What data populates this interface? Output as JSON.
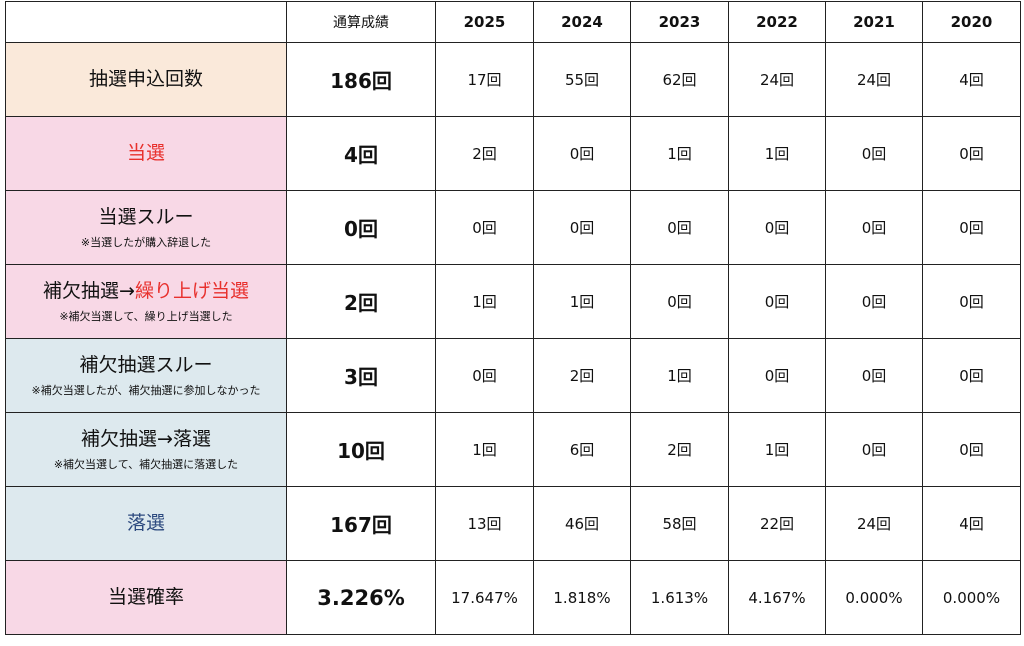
{
  "header": {
    "total_label": "通算成績",
    "years": [
      "2025",
      "2024",
      "2023",
      "2022",
      "2021",
      "2020"
    ]
  },
  "rows": [
    {
      "label": "抽選申込回数",
      "total": "186回",
      "values": [
        "17回",
        "55回",
        "62回",
        "24回",
        "24回",
        "4回"
      ]
    },
    {
      "label": "当選",
      "total": "4回",
      "values": [
        "2回",
        "0回",
        "1回",
        "1回",
        "0回",
        "0回"
      ]
    },
    {
      "label": "当選スルー",
      "note": "※当選したが購入辞退した",
      "total": "0回",
      "values": [
        "0回",
        "0回",
        "0回",
        "0回",
        "0回",
        "0回"
      ]
    },
    {
      "label_prefix": "補欠抽選→",
      "label_highlight": "繰り上げ当選",
      "note": "※補欠当選して、繰り上げ当選した",
      "total": "2回",
      "values": [
        "1回",
        "1回",
        "0回",
        "0回",
        "0回",
        "0回"
      ]
    },
    {
      "label": "補欠抽選スルー",
      "note": "※補欠当選したが、補欠抽選に参加しなかった",
      "total": "3回",
      "values": [
        "0回",
        "2回",
        "1回",
        "0回",
        "0回",
        "0回"
      ]
    },
    {
      "label": "補欠抽選→落選",
      "note": "※補欠当選して、補欠抽選に落選した",
      "total": "10回",
      "values": [
        "1回",
        "6回",
        "2回",
        "1回",
        "0回",
        "0回"
      ]
    },
    {
      "label": "落選",
      "total": "167回",
      "values": [
        "13回",
        "46回",
        "58回",
        "22回",
        "24回",
        "4回"
      ]
    },
    {
      "label": "当選確率",
      "total": "3.226%",
      "values": [
        "17.647%",
        "1.818%",
        "1.613%",
        "4.167%",
        "0.000%",
        "0.000%"
      ]
    }
  ],
  "colors": {
    "peach": "#fae9da",
    "pink": "#f8d8e6",
    "blue": "#dde9ee",
    "red_text": "#e8302d",
    "navy_text": "#2d4a7f"
  }
}
